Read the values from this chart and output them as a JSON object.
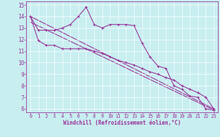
{
  "xlabel": "Windchill (Refroidissement éolien,°C)",
  "bg_color": "#c8eef0",
  "line_color": "#993399",
  "xlim": [
    -0.5,
    23.5
  ],
  "ylim": [
    5.7,
    15.3
  ],
  "yticks": [
    6,
    7,
    8,
    9,
    10,
    11,
    12,
    13,
    14,
    15
  ],
  "xticks": [
    0,
    1,
    2,
    3,
    4,
    5,
    6,
    7,
    8,
    9,
    10,
    11,
    12,
    13,
    14,
    15,
    16,
    17,
    18,
    19,
    20,
    21,
    22,
    23
  ],
  "series1_x": [
    0,
    1,
    2,
    3,
    4,
    5,
    6,
    7,
    8,
    9,
    10,
    11,
    12,
    13,
    14,
    15,
    16,
    17,
    18,
    19,
    20,
    21,
    22,
    23
  ],
  "series1_y": [
    14.0,
    12.8,
    12.8,
    12.8,
    13.0,
    13.3,
    14.0,
    14.8,
    13.3,
    13.0,
    13.3,
    13.3,
    13.3,
    13.2,
    11.7,
    10.5,
    9.7,
    9.5,
    8.0,
    7.7,
    7.1,
    7.0,
    6.0,
    5.9
  ],
  "series2_x": [
    0,
    1,
    2,
    3,
    4,
    5,
    6,
    7,
    8,
    9,
    10,
    11,
    12,
    13,
    14,
    15,
    16,
    17,
    18,
    19,
    20,
    21,
    22,
    23
  ],
  "series2_y": [
    14.0,
    11.9,
    11.5,
    11.5,
    11.2,
    11.2,
    11.2,
    11.2,
    11.0,
    10.8,
    10.5,
    10.2,
    10.0,
    9.8,
    9.5,
    9.2,
    9.0,
    8.7,
    8.5,
    8.0,
    7.7,
    7.4,
    7.0,
    6.0
  ],
  "series3_x": [
    0,
    23
  ],
  "series3_y": [
    14.0,
    6.0
  ],
  "series4_x": [
    0,
    23
  ],
  "series4_y": [
    13.5,
    5.9
  ],
  "grid_color": "#ffffff",
  "spine_color": "#993399",
  "tick_font_size": 5.0,
  "xlabel_font_size": 5.5,
  "marker_size": 3.0,
  "line_width": 0.8
}
